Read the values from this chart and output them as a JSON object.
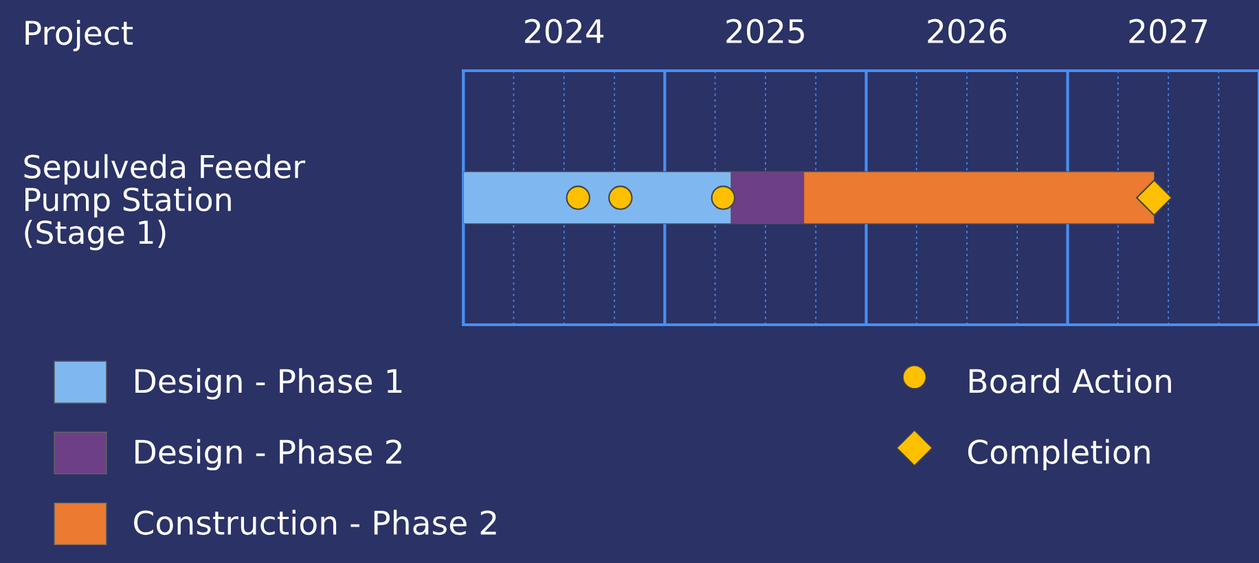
{
  "chart_data": {
    "type": "bar",
    "orientation": "horizontal",
    "ylabel": "Project",
    "categories": [
      "Sepulveda Feeder\nPump Station\n(Stage 1)"
    ],
    "series": [
      {
        "name": "Design - Phase 1",
        "color": "#7fb8f0",
        "base": [
          2024.0
        ],
        "values": [
          1.33
        ]
      },
      {
        "name": "Design - Phase 2",
        "color": "#6d3f87",
        "base": [
          2025.33
        ],
        "values": [
          0.36
        ]
      },
      {
        "name": "Construction - Phase 2",
        "color": "#ec7a30",
        "base": [
          2025.69
        ],
        "values": [
          1.74
        ]
      },
      {
        "name": "Board Action",
        "type": "scatter",
        "marker": "circle",
        "color": "#ffc000",
        "x": [
          "Sepulveda Feeder\nPump Station\n(Stage 1)",
          "Sepulveda Feeder\nPump Station\n(Stage 1)",
          "Sepulveda Feeder\nPump Station\n(Stage 1)"
        ],
        "values": [
          2024.57,
          2024.78,
          2025.29
        ]
      },
      {
        "name": "Completion",
        "type": "scatter",
        "marker": "diamond",
        "color": "#ffc000",
        "x": [
          "Sepulveda Feeder\nPump Station\n(Stage 1)"
        ],
        "values": [
          2027.43
        ]
      }
    ],
    "xlim": [
      2024,
      2027.95
    ],
    "xticks": [
      {
        "value": 2024,
        "label": null
      },
      {
        "value": 2024.25,
        "label": null
      },
      {
        "value": 2024.5,
        "label": "2024"
      },
      {
        "value": 2024.75,
        "label": null
      },
      {
        "value": 2025,
        "label": null
      },
      {
        "value": 2025.25,
        "label": null
      },
      {
        "value": 2025.5,
        "label": "2025"
      },
      {
        "value": 2025.75,
        "label": null
      },
      {
        "value": 2026,
        "label": null
      },
      {
        "value": 2026.25,
        "label": null
      },
      {
        "value": 2026.5,
        "label": "2026"
      },
      {
        "value": 2026.75,
        "label": null
      },
      {
        "value": 2027,
        "label": null
      },
      {
        "value": 2027.25,
        "label": null
      },
      {
        "value": 2027.5,
        "label": "2027"
      },
      {
        "value": 2027.75,
        "label": null
      }
    ],
    "grid": "x",
    "legend": "bottom"
  }
}
